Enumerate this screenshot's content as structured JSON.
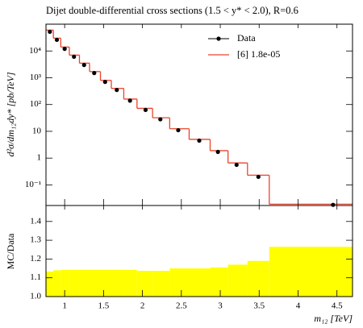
{
  "chart_data": [
    {
      "type": "step",
      "title": "Dijet double-differential cross sections (1.5 < y* < 2.0), R=0.6",
      "ylabel": "d²σ/dm₁₂dy* [pb/TeV]",
      "log_y": true,
      "xlim": [
        0.76,
        4.7
      ],
      "ylim": [
        0.017,
        100000
      ],
      "yticks": [
        {
          "value": 0.1,
          "label": "10⁻¹"
        },
        1,
        10,
        {
          "value": 100,
          "label": "10²"
        },
        {
          "value": 1000,
          "label": "10³"
        },
        {
          "value": 10000,
          "label": "10⁴"
        }
      ],
      "legend": "upper right",
      "series": [
        {
          "name": "Data",
          "color": "#000000",
          "x": [
            0.81,
            0.9,
            1.0,
            1.12,
            1.25,
            1.38,
            1.52,
            1.67,
            1.84,
            2.04,
            2.23,
            2.46,
            2.73,
            2.97,
            3.21,
            3.49,
            4.45
          ],
          "values": [
            52000,
            26000,
            12000,
            6100,
            3000,
            1500,
            700,
            350,
            140,
            63,
            28,
            11,
            4.5,
            1.7,
            0.56,
            0.2,
            0.018
          ]
        },
        {
          "name": "[6] 1.8e-05",
          "color": "#e8452c",
          "bins": [
            0.76,
            0.855,
            0.95,
            1.06,
            1.19,
            1.32,
            1.46,
            1.6,
            1.76,
            1.93,
            2.13,
            2.35,
            2.6,
            2.87,
            3.1,
            3.35,
            3.63,
            4.7
          ],
          "values": [
            60000,
            30000,
            14000,
            7000,
            3500,
            1700,
            800,
            400,
            160,
            72,
            32,
            12.5,
            5,
            1.9,
            0.66,
            0.23,
            0.019
          ]
        }
      ]
    },
    {
      "type": "histogram",
      "ylabel": "MC/Data",
      "xlabel": "m₁₂ [TeV]",
      "xlim": [
        0.76,
        4.7
      ],
      "xticks": [
        1,
        1.5,
        2,
        2.5,
        3,
        3.5,
        4,
        4.5
      ],
      "ylim": [
        1.0,
        1.485
      ],
      "yticks": [
        {
          "value": 1.0,
          "label": "1.0"
        },
        1.1,
        1.2,
        1.3,
        1.4
      ],
      "color": "#ffff00",
      "bins": [
        0.76,
        0.855,
        0.95,
        1.06,
        1.19,
        1.32,
        1.46,
        1.6,
        1.76,
        1.93,
        2.13,
        2.35,
        2.6,
        2.87,
        3.1,
        3.35,
        3.63,
        4.7
      ],
      "values": [
        1.133,
        1.14,
        1.142,
        1.142,
        1.142,
        1.142,
        1.142,
        1.142,
        1.142,
        1.137,
        1.137,
        1.15,
        1.15,
        1.155,
        1.17,
        1.19,
        1.265
      ]
    }
  ]
}
